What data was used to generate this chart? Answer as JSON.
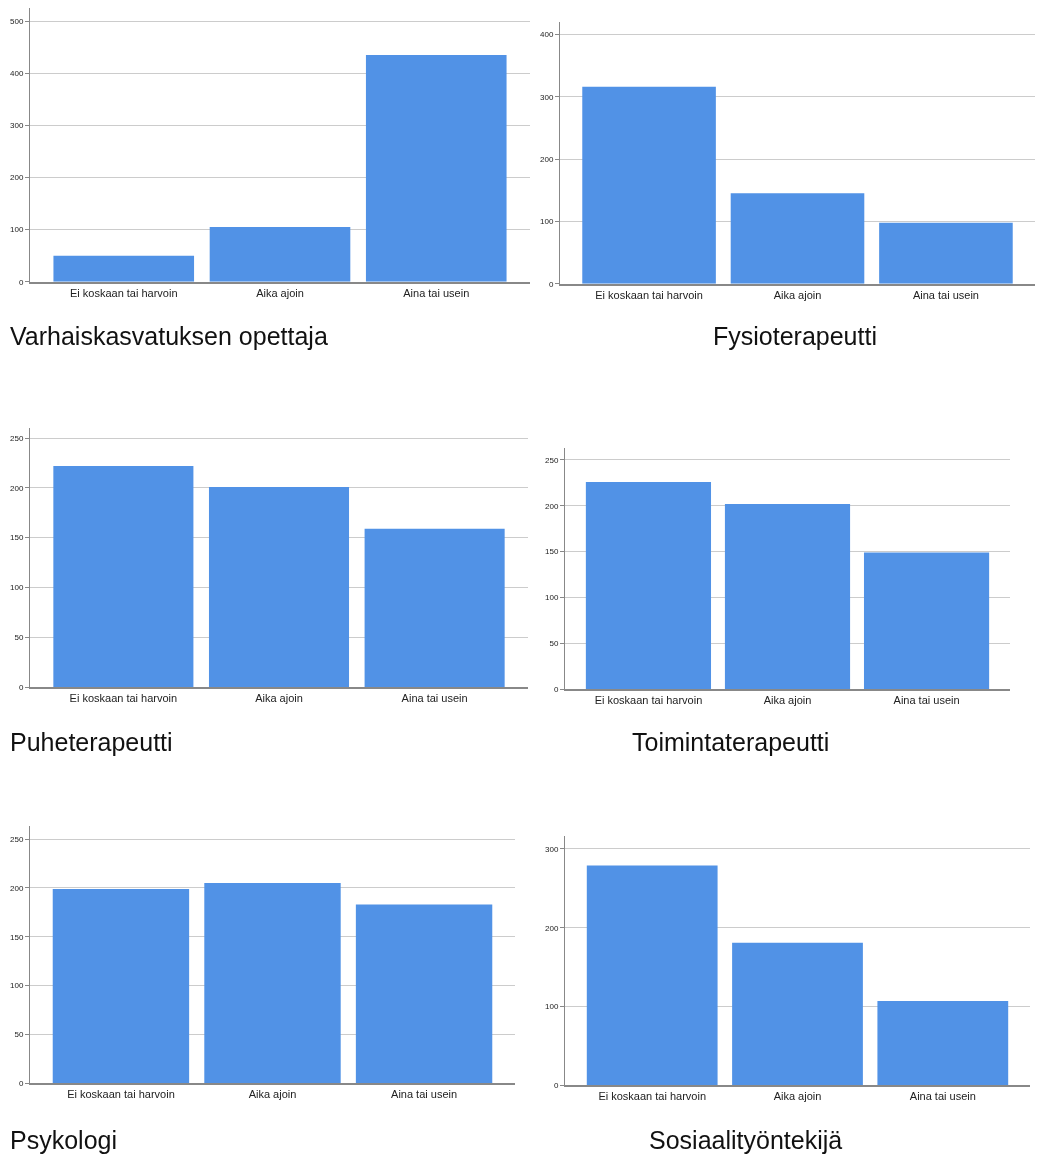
{
  "chart_data": [
    {
      "type": "bar",
      "title": "Varhaiskasvatuksen opettaja",
      "categories": [
        "Ei koskaan tai harvoin",
        "Aika ajoin",
        "Aina tai usein"
      ],
      "values": [
        50,
        105,
        435
      ],
      "color": "#5192e6",
      "ylim": [
        0,
        525
      ],
      "yticks": [
        0,
        100,
        200,
        300,
        400,
        500
      ],
      "grid": "y"
    },
    {
      "type": "bar",
      "title": "Fysioterapeutti",
      "categories": [
        "Ei koskaan tai harvoin",
        "Aika ajoin",
        "Aina tai usein"
      ],
      "values": [
        316,
        145,
        98
      ],
      "color": "#5192e6",
      "ylim": [
        0,
        420
      ],
      "yticks": [
        0,
        100,
        200,
        300,
        400
      ],
      "grid": "y"
    },
    {
      "type": "bar",
      "title": "Puheterapeutti",
      "categories": [
        "Ei koskaan tai harvoin",
        "Aika ajoin",
        "Aina tai usein"
      ],
      "values": [
        222,
        201,
        159
      ],
      "color": "#5192e6",
      "ylim": [
        0,
        260
      ],
      "yticks": [
        0,
        50,
        100,
        150,
        200,
        250
      ],
      "grid": "y"
    },
    {
      "type": "bar",
      "title": "Toimintaterapeutti",
      "categories": [
        "Ei koskaan tai harvoin",
        "Aika ajoin",
        "Aina tai usein"
      ],
      "values": [
        226,
        202,
        149
      ],
      "color": "#5192e6",
      "ylim": [
        0,
        263
      ],
      "yticks": [
        0,
        50,
        100,
        150,
        200,
        250
      ],
      "grid": "y"
    },
    {
      "type": "bar",
      "title": "Psykologi",
      "categories": [
        "Ei koskaan tai harvoin",
        "Aika ajoin",
        "Aina tai usein"
      ],
      "values": [
        199,
        205,
        183
      ],
      "color": "#5192e6",
      "ylim": [
        0,
        263
      ],
      "yticks": [
        0,
        50,
        100,
        150,
        200,
        250
      ],
      "grid": "y"
    },
    {
      "type": "bar",
      "title": "Sosiaalityöntekijä",
      "categories": [
        "Ei koskaan tai harvoin",
        "Aika ajoin",
        "Aina tai usein"
      ],
      "values": [
        279,
        181,
        107
      ],
      "color": "#5192e6",
      "ylim": [
        0,
        316
      ],
      "yticks": [
        0,
        100,
        200,
        300
      ],
      "grid": "y"
    }
  ]
}
